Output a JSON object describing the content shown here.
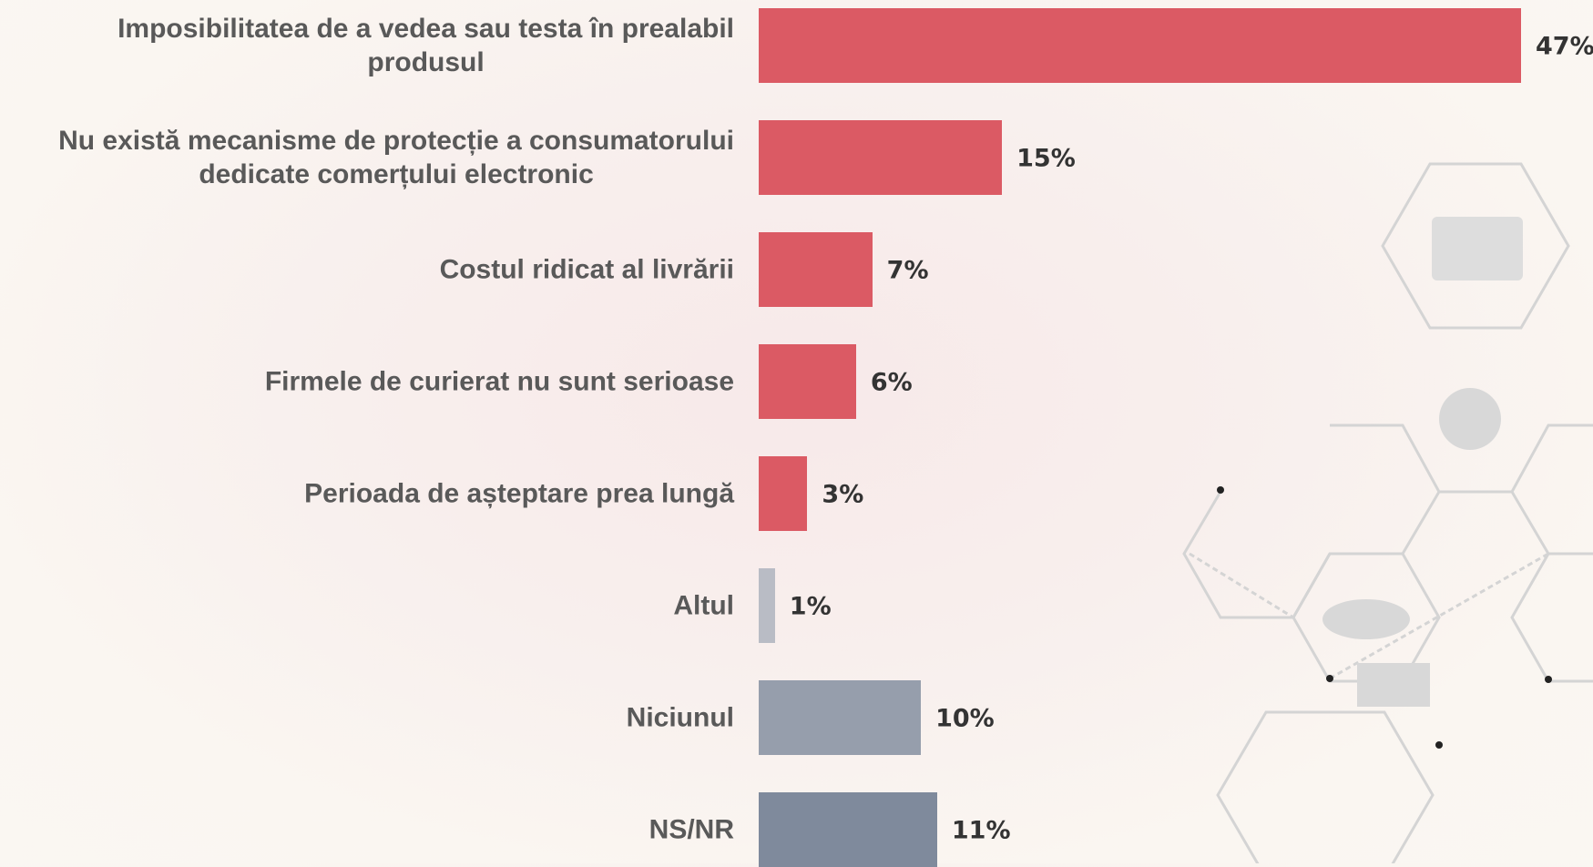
{
  "chart_data": {
    "type": "bar",
    "orientation": "horizontal",
    "categories": [
      "Imposibilitatea de a vedea sau testa în prealabil\nprodusul",
      "Nu există mecanisme de protecție a consumatorului\ndedicate comerțului electronic",
      "Costul ridicat al livrării",
      "Firmele de curierat nu sunt serioase",
      "Perioada de așteptare prea lungă",
      "Altul",
      "Niciunul",
      "NS/NR"
    ],
    "values": [
      47,
      15,
      7,
      6,
      3,
      1,
      10,
      11
    ],
    "value_labels": [
      "47%",
      "15%",
      "7%",
      "6%",
      "3%",
      "1%",
      "10%",
      "11%"
    ],
    "colors": [
      "#db5a64",
      "#db5a64",
      "#db5a64",
      "#db5a64",
      "#db5a64",
      "#b9bcc5",
      "#969eac",
      "#7f8a9c"
    ]
  }
}
